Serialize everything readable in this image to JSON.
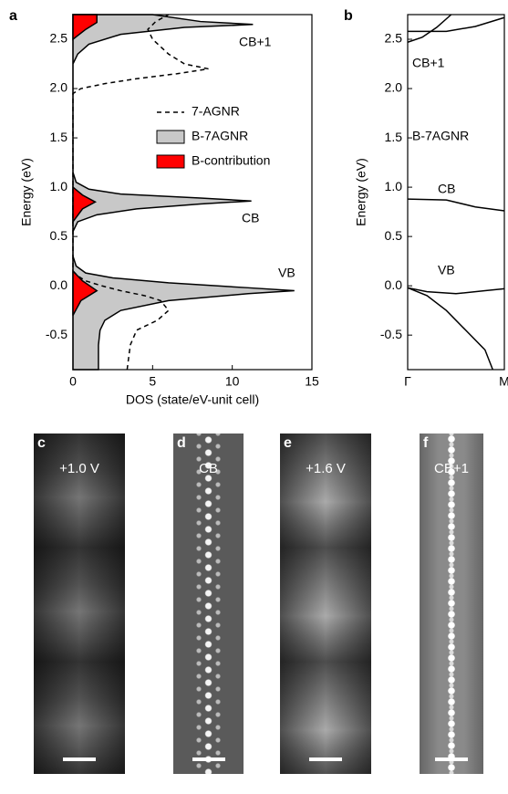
{
  "chart_data": [
    {
      "type": "line",
      "panel": "a",
      "xlabel": "DOS (state/eV-unit cell)",
      "ylabel": "Energy (eV)",
      "xlim": [
        0,
        15
      ],
      "xticks": [
        0,
        5,
        10,
        15
      ],
      "ylim": [
        -0.85,
        2.75
      ],
      "yticks": [
        -0.5,
        {
          "value": 0,
          "label": "0.0"
        },
        0.5,
        {
          "value": 1,
          "label": "1.0"
        },
        1.5,
        {
          "value": 2,
          "label": "2.0"
        },
        2.5
      ],
      "grid": false,
      "annotations": [
        "CB+1",
        "CB",
        "VB"
      ],
      "series": [
        {
          "name": "B-7AGNR",
          "color": "#000000",
          "fill": "#c8c8c8",
          "x": [
            1.6,
            1.6,
            1.7,
            2.0,
            3.0,
            6,
            11,
            13.9,
            11,
            6,
            2.5,
            0.8,
            0.2,
            0,
            0,
            0.3,
            1.5,
            4,
            8,
            11.2,
            8,
            3,
            1,
            0.2,
            0,
            0,
            0.3,
            1,
            3,
            7,
            11.3,
            8,
            5
          ],
          "y": [
            -0.85,
            -0.6,
            -0.45,
            -0.35,
            -0.25,
            -0.15,
            -0.08,
            -0.05,
            -0.02,
            0.03,
            0.08,
            0.13,
            0.2,
            0.3,
            0.55,
            0.65,
            0.72,
            0.78,
            0.83,
            0.86,
            0.89,
            0.93,
            0.98,
            1.05,
            1.15,
            2.25,
            2.35,
            2.45,
            2.55,
            2.62,
            2.65,
            2.68,
            2.75
          ]
        },
        {
          "name": "B-contribution",
          "color": "#000000",
          "fill": "#ff0000",
          "x": [
            0,
            0.5,
            1.5,
            0.6,
            0,
            null,
            0,
            0.6,
            1.4,
            0.6,
            0,
            null,
            0,
            0.8,
            1.5,
            1.5
          ],
          "y": [
            -0.3,
            -0.15,
            -0.05,
            0.05,
            0.15,
            null,
            0.65,
            0.78,
            0.85,
            0.92,
            1.0,
            null,
            2.5,
            2.6,
            2.67,
            2.75
          ]
        },
        {
          "name": "7-AGNR",
          "color": "#000000",
          "dashed": true,
          "x": [
            3.4,
            3.6,
            4.0,
            5.3,
            6.0,
            5.5,
            4.5,
            3,
            1.8,
            0.8,
            0.3,
            0,
            0,
            0.5,
            2,
            4,
            6.5,
            8.5,
            7,
            6,
            5,
            4.7,
            5.2,
            6
          ],
          "y": [
            -0.85,
            -0.6,
            -0.45,
            -0.35,
            -0.25,
            -0.15,
            -0.1,
            -0.05,
            0,
            0.05,
            0.1,
            0.15,
            1.95,
            2.0,
            2.05,
            2.1,
            2.15,
            2.2,
            2.25,
            2.35,
            2.5,
            2.6,
            2.68,
            2.75
          ]
        }
      ]
    },
    {
      "type": "line",
      "panel": "b",
      "ylabel": "Energy (eV)",
      "xlim": [
        0,
        1
      ],
      "xticks": [
        {
          "value": 0,
          "label": "Γ"
        },
        {
          "value": 1,
          "label": "M"
        }
      ],
      "ylim": [
        -0.85,
        2.75
      ],
      "yticks": [
        -0.5,
        {
          "value": 0,
          "label": "0.0"
        },
        0.5,
        {
          "value": 1,
          "label": "1.0"
        },
        1.5,
        {
          "value": 2,
          "label": "2.0"
        },
        2.5
      ],
      "grid": false,
      "annotations": [
        "CB+1",
        "B-7AGNR",
        "CB",
        "VB"
      ],
      "series": [
        {
          "color": "#000000",
          "x": [
            0,
            0.2,
            0.5,
            0.8,
            1
          ],
          "y": [
            -0.02,
            -0.06,
            -0.08,
            -0.05,
            -0.03
          ]
        },
        {
          "color": "#000000",
          "x": [
            0,
            0.2,
            0.4,
            0.6,
            0.8,
            0.88
          ],
          "y": [
            -0.02,
            -0.1,
            -0.25,
            -0.45,
            -0.65,
            -0.85
          ]
        },
        {
          "color": "#000000",
          "x": [
            0,
            0.4,
            0.7,
            1
          ],
          "y": [
            0.88,
            0.87,
            0.8,
            0.76
          ]
        },
        {
          "color": "#000000",
          "x": [
            0,
            0.4,
            0.7,
            1
          ],
          "y": [
            2.58,
            2.58,
            2.63,
            2.72
          ]
        },
        {
          "color": "#000000",
          "x": [
            0,
            0.15,
            0.3,
            0.45
          ],
          "y": [
            2.47,
            2.52,
            2.62,
            2.75
          ]
        }
      ]
    }
  ],
  "images": [
    {
      "panel": "c",
      "caption": "+1.0 V"
    },
    {
      "panel": "d",
      "caption": "CB"
    },
    {
      "panel": "e",
      "caption": "+1.6 V"
    },
    {
      "panel": "f",
      "caption": "CB+1"
    }
  ]
}
